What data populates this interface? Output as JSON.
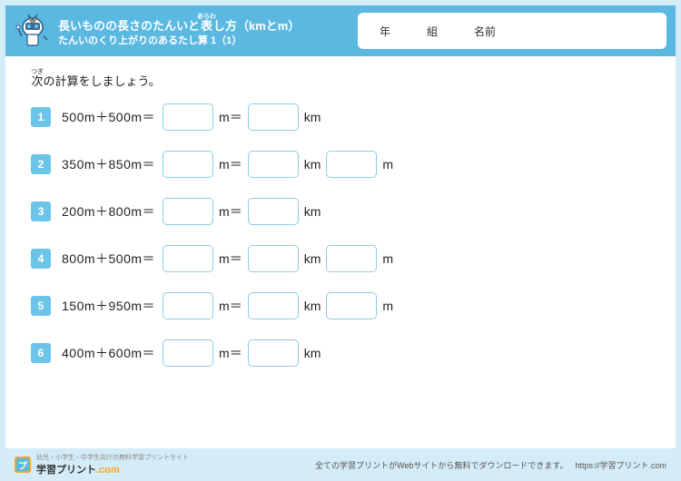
{
  "header": {
    "title_main": "長いものの長さのたんいと表し方（kmとm）",
    "title_sub": "たんいのくり上がりのあるたし算 1（1）",
    "name_year": "年",
    "name_class": "組",
    "name_name": "名前"
  },
  "instruction": "次の計算をしましょう。",
  "problems": [
    {
      "num": "1",
      "expr": "500m＋500m＝",
      "boxes": [
        "m",
        "km"
      ]
    },
    {
      "num": "2",
      "expr": "350m＋850m＝",
      "boxes": [
        "m",
        "km",
        "m"
      ]
    },
    {
      "num": "3",
      "expr": "200m＋800m＝",
      "boxes": [
        "m",
        "km"
      ]
    },
    {
      "num": "4",
      "expr": "800m＋500m＝",
      "boxes": [
        "m",
        "km",
        "m"
      ]
    },
    {
      "num": "5",
      "expr": "150m＋950m＝",
      "boxes": [
        "m",
        "km",
        "m"
      ]
    },
    {
      "num": "6",
      "expr": "400m＋600m＝",
      "boxes": [
        "m",
        "km"
      ]
    }
  ],
  "footer": {
    "tagline": "幼児・小学生・中学生向けの無料学習プリントサイト",
    "logo_text": "学習プリント",
    "logo_suffix": ".com",
    "note": "全ての学習プリントがWebサイトから無料でダウンロードできます。",
    "url": "https://学習プリント.com"
  },
  "colors": {
    "accent": "#5bb8e0",
    "light": "#d4ecf7",
    "badge": "#6cc5e8",
    "box_border": "#8fcbe8",
    "orange": "#f5a623"
  }
}
